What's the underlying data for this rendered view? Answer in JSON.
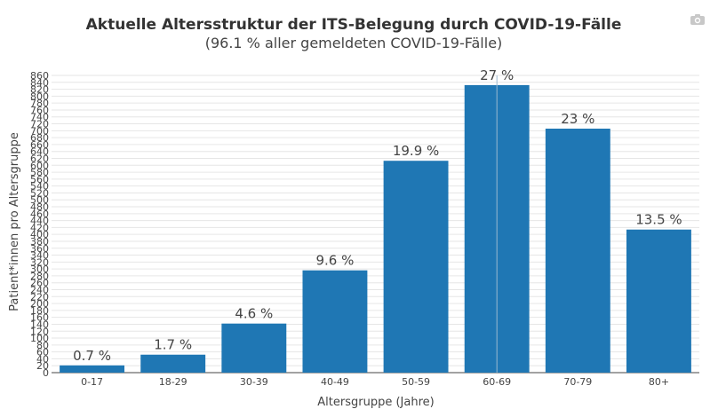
{
  "toolbar": {
    "camera_icon": "camera-icon"
  },
  "chart_data": {
    "type": "bar",
    "title": "Aktuelle Altersstruktur der ITS-Belegung durch COVID-19-Fälle",
    "subtitle": "(96.1 % aller gemeldeten COVID-19-Fälle)",
    "xlabel": "Altersgruppe (Jahre)",
    "ylabel": "Patient*innen pro Altersgruppe",
    "categories": [
      "0-17",
      "18-29",
      "30-39",
      "40-49",
      "50-59",
      "60-69",
      "70-79",
      "80+"
    ],
    "values": [
      21,
      52,
      142,
      296,
      613,
      832,
      706,
      414
    ],
    "data_labels": [
      "0.7 %",
      "1.7 %",
      "4.6 %",
      "9.6 %",
      "19.9 %",
      "27 %",
      "23 %",
      "13.5 %"
    ],
    "ylim": [
      0,
      860
    ],
    "ytick_step": 20,
    "grid": true,
    "colors": {
      "bar": "#1f77b4",
      "grid": "#e6e6e6",
      "text": "#444444",
      "title": "#333333"
    }
  }
}
